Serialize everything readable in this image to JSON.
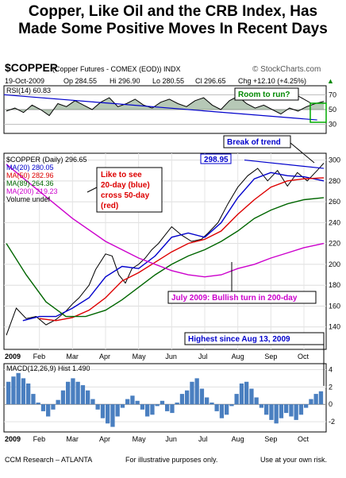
{
  "title_lines": [
    "Copper, Like Oil and the CRB Index, Has",
    "Made Some Positive Moves In Recent Days"
  ],
  "header": {
    "symbol": "$COPPER",
    "description": "(Copper Futures - COMEX (EOD)) INDX",
    "watermark": "© StockCharts.com",
    "date": "19-Oct-2009",
    "op": "Op 284.55",
    "hi": "Hi 296.90",
    "lo": "Lo 280.55",
    "cl": "Cl 296.65",
    "chg": "Chg +12.10 (+4.25%)",
    "chg_arrow": "▲"
  },
  "rsi_label": "RSI(14) 60.83",
  "price_legend": [
    {
      "text": "$COPPER (Daily) 296.65",
      "color": "#000000"
    },
    {
      "text": "MA(20) 280.05",
      "color": "#0000cc"
    },
    {
      "text": "MA(50) 282.96",
      "color": "#dd0000"
    },
    {
      "text": "MA(89) 264.36",
      "color": "#006600"
    },
    {
      "text": "MA(200) 219.23",
      "color": "#cc00cc"
    },
    {
      "text": "Volume undef",
      "color": "#000000"
    }
  ],
  "macd_label": "MACD(12,26,9) Hist 1.490",
  "annotations": {
    "room": "Room to run?",
    "break": "Break of trend",
    "like_to_see": [
      "Like to see",
      "20-day (blue)",
      "cross 50-day",
      "(red)"
    ],
    "july": "July 2009: Bullish turn in 200-day",
    "highest": "Highest since Aug 13, 2009",
    "last_price": "298.95"
  },
  "footer": {
    "left": "CCM Research – ATLANTA",
    "middle": "For illustrative purposes only.",
    "right": "Use at your own risk."
  },
  "chart_data": {
    "type": "line",
    "x_labels": [
      "2009",
      "Feb",
      "Mar",
      "Apr",
      "May",
      "Jun",
      "Jul",
      "Aug",
      "Sep",
      "Oct"
    ],
    "price_panel": {
      "ylim": [
        120,
        305
      ],
      "yticks": [
        140,
        160,
        180,
        200,
        220,
        240,
        260,
        280,
        300
      ],
      "series": [
        {
          "name": "$COPPER (Daily)",
          "color": "#000000",
          "x": [
            0,
            0.3,
            0.6,
            0.9,
            1.2,
            1.5,
            1.8,
            2.0,
            2.2,
            2.5,
            2.7,
            3.0,
            3.2,
            3.4,
            3.6,
            3.8,
            4.0,
            4.2,
            4.4,
            4.6,
            4.8,
            5.0,
            5.3,
            5.6,
            5.9,
            6.1,
            6.4,
            6.7,
            7.0,
            7.3,
            7.6,
            7.9,
            8.2,
            8.5,
            8.8,
            9.1,
            9.4,
            9.6
          ],
          "values": [
            132,
            158,
            148,
            150,
            142,
            147,
            155,
            162,
            168,
            180,
            195,
            210,
            208,
            190,
            182,
            196,
            200,
            206,
            214,
            220,
            228,
            236,
            228,
            222,
            224,
            230,
            240,
            258,
            274,
            285,
            292,
            280,
            290,
            275,
            288,
            280,
            290,
            297
          ]
        },
        {
          "name": "MA(20)",
          "color": "#0000cc",
          "x": [
            0.5,
            1,
            1.5,
            2,
            2.5,
            3,
            3.5,
            4,
            4.5,
            5,
            5.5,
            6,
            6.5,
            7,
            7.5,
            8,
            8.5,
            9,
            9.6
          ],
          "values": [
            146,
            150,
            150,
            158,
            168,
            188,
            198,
            196,
            208,
            226,
            230,
            226,
            240,
            264,
            282,
            288,
            285,
            284,
            280
          ]
        },
        {
          "name": "MA(50)",
          "color": "#dd0000",
          "x": [
            1,
            1.5,
            2,
            2.5,
            3,
            3.5,
            4,
            4.5,
            5,
            5.5,
            6,
            6.5,
            7,
            7.5,
            8,
            8.5,
            9,
            9.6
          ],
          "values": [
            148,
            146,
            149,
            156,
            168,
            184,
            192,
            202,
            212,
            220,
            224,
            232,
            248,
            262,
            274,
            280,
            282,
            283
          ]
        },
        {
          "name": "MA(89)",
          "color": "#006600",
          "x": [
            0,
            0.6,
            1.2,
            1.8,
            2.4,
            3,
            3.5,
            4,
            4.5,
            5,
            5.5,
            6,
            6.5,
            7,
            7.5,
            8,
            8.5,
            9,
            9.6
          ],
          "values": [
            220,
            190,
            164,
            150,
            150,
            156,
            166,
            178,
            190,
            200,
            208,
            214,
            222,
            232,
            244,
            252,
            258,
            262,
            264
          ]
        },
        {
          "name": "MA(200)",
          "color": "#cc00cc",
          "x": [
            0,
            1,
            2,
            3,
            4,
            5,
            5.5,
            6,
            6.5,
            7,
            7.5,
            8,
            8.5,
            9,
            9.6
          ],
          "values": [
            296,
            270,
            244,
            222,
            206,
            194,
            190,
            188,
            190,
            196,
            200,
            206,
            211,
            216,
            220
          ]
        }
      ]
    },
    "rsi_panel": {
      "ylim": [
        20,
        80
      ],
      "yticks": [
        30,
        50,
        70
      ],
      "values": [
        48,
        52,
        46,
        56,
        50,
        42,
        58,
        54,
        62,
        56,
        50,
        60,
        66,
        54,
        58,
        64,
        56,
        52,
        60,
        64,
        58,
        54,
        62,
        66,
        56,
        50,
        62,
        68,
        58,
        52,
        56,
        50,
        44,
        52,
        48,
        54,
        58,
        61
      ]
    },
    "macd_panel": {
      "ylim": [
        -3,
        4.5
      ],
      "yticks": [
        4,
        2,
        0,
        -2
      ],
      "hist": [
        2.6,
        3.2,
        3.6,
        3.0,
        2.4,
        1.2,
        0.2,
        -0.8,
        -1.4,
        -0.6,
        0.5,
        1.6,
        2.6,
        3.0,
        2.6,
        2.2,
        1.6,
        0.6,
        -0.6,
        -1.6,
        -2.2,
        -2.6,
        -1.4,
        -0.4,
        0.6,
        1.0,
        0.4,
        -0.6,
        -1.4,
        -1.2,
        -0.2,
        0.4,
        -0.8,
        -1.0,
        0.2,
        1.2,
        1.6,
        2.6,
        3.0,
        1.8,
        0.8,
        0.2,
        -0.8,
        -1.6,
        -1.2,
        -0.2,
        1.2,
        2.4,
        2.6,
        1.8,
        0.8,
        -0.4,
        -1.2,
        -1.8,
        -2.2,
        -1.6,
        -1.0,
        -1.4,
        -1.8,
        -1.2,
        -0.4,
        0.6,
        1.2,
        1.5
      ]
    }
  }
}
